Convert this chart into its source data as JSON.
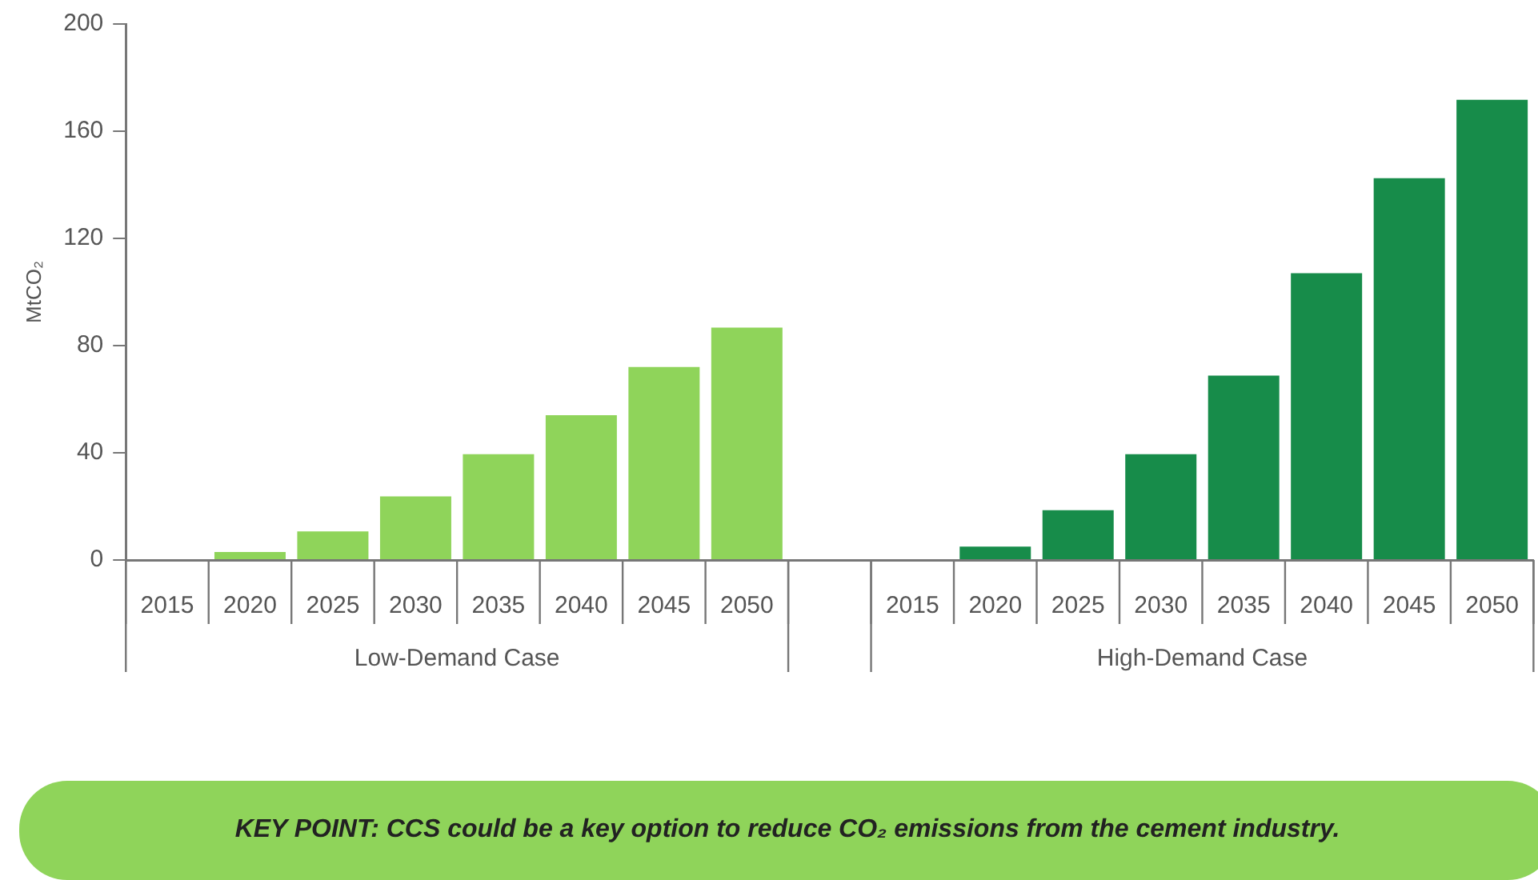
{
  "chart_data": {
    "type": "bar",
    "ylabel": "MtCO₂",
    "categories": [
      "2015",
      "2020",
      "2025",
      "2030",
      "2035",
      "2040",
      "2045",
      "2050",
      null,
      "2015",
      "2020",
      "2025",
      "2030",
      "2035",
      "2040",
      "2045",
      "2050"
    ],
    "values": [
      0,
      3,
      10.7,
      23.7,
      39.5,
      54,
      72,
      86.7,
      null,
      0,
      5,
      18.6,
      39.5,
      68.8,
      107,
      142.5,
      171.7
    ],
    "colors": [
      "#8fd45a",
      "#8fd45a",
      "#8fd45a",
      "#8fd45a",
      "#8fd45a",
      "#8fd45a",
      "#8fd45a",
      "#8fd45a",
      "#8fd45a",
      "#178c4a",
      "#178c4a",
      "#178c4a",
      "#178c4a",
      "#178c4a",
      "#178c4a",
      "#178c4a",
      "#178c4a"
    ],
    "ylim": [
      0,
      200
    ],
    "yticks": [
      0,
      40,
      80,
      120,
      160,
      200
    ],
    "grid": false,
    "legend": false,
    "annotations": [
      "Low-Demand Case",
      "High-Demand Case",
      "KEY POINT: CCS could be a key option to reduce CO₂ emissions from the cement industry."
    ]
  }
}
